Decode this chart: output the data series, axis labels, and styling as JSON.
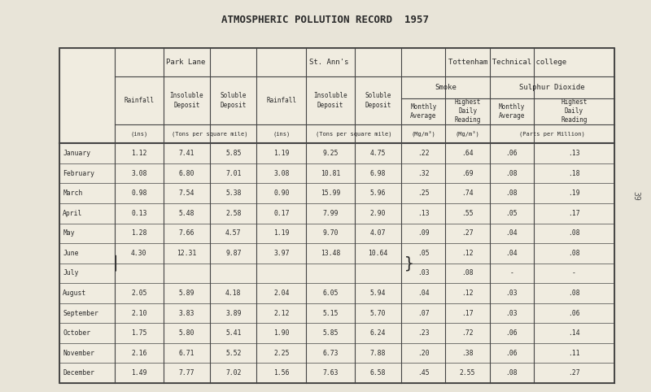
{
  "title": "ATMOSPHERIC POLLUTION RECORD  1957",
  "bg_color": "#e8e4d8",
  "table_bg": "#f0ece0",
  "months": [
    "January",
    "February",
    "March",
    "April",
    "May",
    "June",
    "July",
    "August",
    "September",
    "October",
    "November",
    "December"
  ],
  "park_lane": {
    "rainfall": [
      "1.12",
      "3.08",
      "0.98",
      "0.13",
      "1.28",
      "4.30",
      "",
      "2.05",
      "2.10",
      "1.75",
      "2.16",
      "1.49"
    ],
    "insoluble": [
      "7.41",
      "6.80",
      "7.54",
      "5.48",
      "7.66",
      "12.31",
      "",
      "5.89",
      "3.83",
      "5.80",
      "6.71",
      "7.77"
    ],
    "soluble": [
      "5.85",
      "7.01",
      "5.38",
      "2.58",
      "4.57",
      "9.87",
      "",
      "4.18",
      "3.89",
      "5.41",
      "5.52",
      "7.02"
    ]
  },
  "st_anns": {
    "rainfall": [
      "1.19",
      "3.08",
      "0.90",
      "0.17",
      "1.19",
      "3.97",
      "",
      "2.04",
      "2.12",
      "1.90",
      "2.25",
      "1.56"
    ],
    "insoluble": [
      "9.25",
      "10.81",
      "15.99",
      "7.99",
      "9.70",
      "13.48",
      "",
      "6.05",
      "5.15",
      "5.85",
      "6.73",
      "7.63"
    ],
    "soluble": [
      "4.75",
      "6.98",
      "5.96",
      "2.90",
      "4.07",
      "10.64",
      "",
      "5.94",
      "5.70",
      "6.24",
      "7.88",
      "6.58"
    ]
  },
  "smoke_monthly": [
    ".22",
    ".32",
    ".25",
    ".13",
    ".09",
    ".05",
    ".03",
    ".04",
    ".07",
    ".23",
    ".20",
    ".45"
  ],
  "smoke_highest": [
    ".64",
    ".69",
    ".74",
    ".55",
    ".27",
    ".12",
    ".08",
    ".12",
    ".17",
    ".72",
    ".38",
    "2.55"
  ],
  "sulphur_monthly": [
    ".06",
    ".08",
    ".08",
    ".05",
    ".04",
    ".04",
    "-",
    ".03",
    ".03",
    ".06",
    ".06",
    ".08"
  ],
  "sulphur_highest": [
    ".13",
    ".18",
    ".19",
    ".17",
    ".08",
    ".08",
    "-",
    ".08",
    ".06",
    ".14",
    ".11",
    ".27"
  ]
}
